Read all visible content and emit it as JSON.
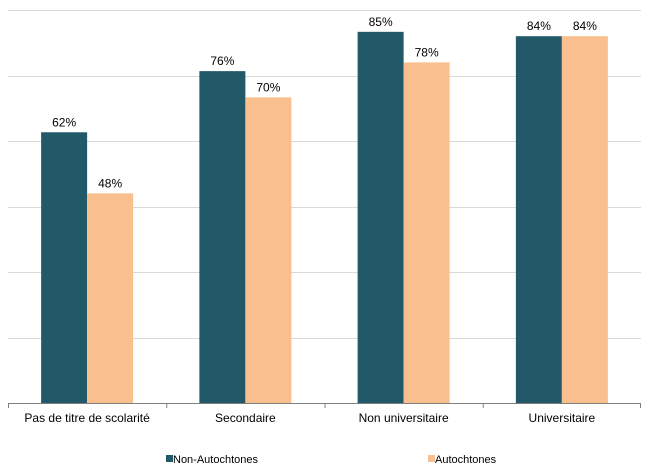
{
  "chart_data": {
    "type": "bar",
    "title": "",
    "xlabel": "",
    "ylabel": "",
    "ylim": [
      0,
      90
    ],
    "y_tick_step": 15,
    "y_tick_labels_shown": false,
    "grid": true,
    "legend_position": "bottom",
    "categories": [
      "Pas de titre de scolarité",
      "Secondaire",
      "Non universitaire",
      "Universitaire"
    ],
    "series": [
      {
        "name": "Non-Autochtones",
        "color": "#215968",
        "values": [
          62,
          76,
          85,
          84
        ],
        "labels": [
          "62%",
          "76%",
          "85%",
          "84%"
        ]
      },
      {
        "name": "Autochtones",
        "color": "#F9BF8E",
        "values": [
          48,
          70,
          78,
          84
        ],
        "labels": [
          "48%",
          "70%",
          "78%",
          "84%"
        ]
      }
    ]
  },
  "colors": {
    "grid": "#D9D9D9",
    "axis": "#7F7F7F",
    "text": "#000000"
  }
}
